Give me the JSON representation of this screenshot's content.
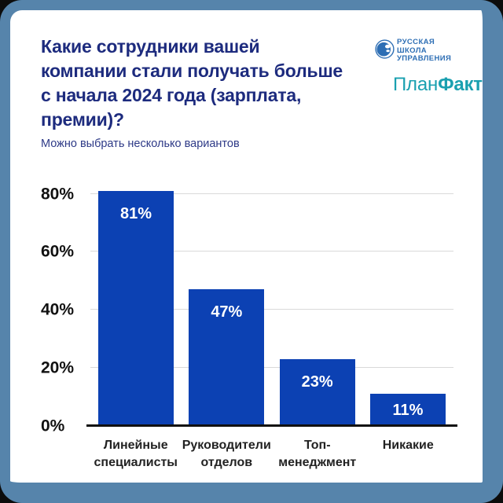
{
  "header": {
    "title": "Какие сотрудники вашей\nкомпании стали получать больше\nс начала 2024 года (зарплата, премии)?",
    "subtitle": "Можно выбрать несколько вариантов"
  },
  "logos": {
    "rsu_lines": "РУССКАЯ\nШКОЛА\nУПРАВЛЕНИЯ",
    "planfact_part1": "План",
    "planfact_part2": "Факт"
  },
  "colors": {
    "bar": "#0c41b3",
    "title": "#1d2b7e",
    "border": "#5684ab",
    "planfact": "#1aa0b0",
    "rsu_blue": "#2d6eb4",
    "gridline": "#d9d9d9"
  },
  "chart_data": {
    "type": "bar",
    "title": "Какие сотрудники вашей компании стали получать больше с начала 2024 года (зарплата, премии)?",
    "subtitle": "Можно выбрать несколько вариантов",
    "categories": [
      "Линейные\nспециалисты",
      "Руководители\nотделов",
      "Топ-\nменеджмент",
      "Никакие"
    ],
    "values": [
      81,
      47,
      23,
      11
    ],
    "value_labels": [
      "81%",
      "47%",
      "23%",
      "11%"
    ],
    "yticks": [
      0,
      20,
      40,
      60,
      80
    ],
    "ytick_labels": [
      "0%",
      "20%",
      "40%",
      "60%",
      "80%"
    ],
    "ylim": [
      0,
      88
    ],
    "ylabel": "",
    "xlabel": "",
    "grid": true,
    "legend": false,
    "bar_color": "#0c41b3"
  }
}
